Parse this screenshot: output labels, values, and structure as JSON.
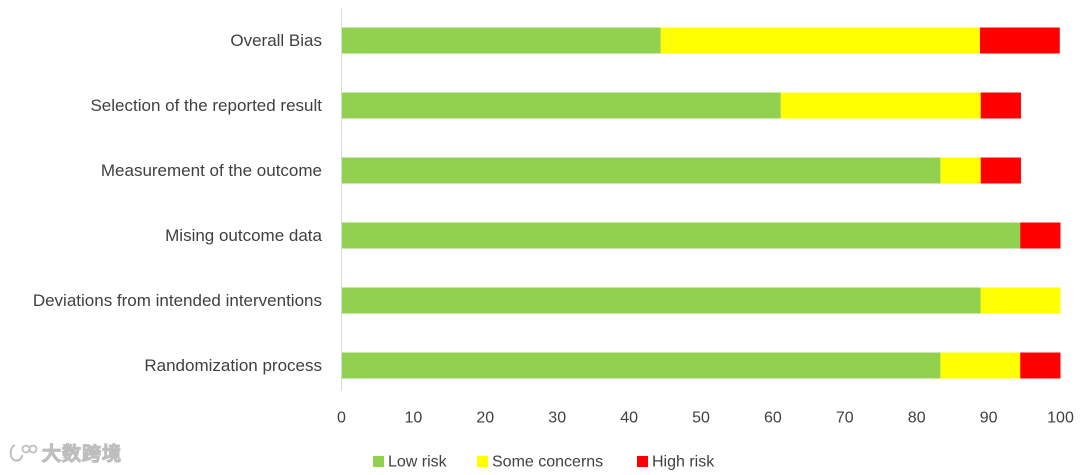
{
  "chart_data": {
    "type": "bar",
    "orientation": "horizontal",
    "stacked": true,
    "categories": [
      "Overall Bias",
      "Selection of the reported result",
      "Measurement of the outcome",
      "Mising outcome data",
      "Deviations from intended interventions",
      "Randomization process"
    ],
    "series": [
      {
        "name": "Low risk",
        "color": "#92d050",
        "values": [
          44.4,
          61.1,
          83.3,
          94.4,
          88.9,
          83.3
        ]
      },
      {
        "name": "Some concerns",
        "color": "#ffff00",
        "values": [
          44.4,
          27.8,
          5.6,
          0,
          11.1,
          11.1
        ]
      },
      {
        "name": "High risk",
        "color": "#ff0000",
        "values": [
          11.1,
          5.6,
          5.6,
          5.6,
          0,
          5.6
        ]
      }
    ],
    "xlim": [
      0,
      100
    ],
    "xticks": [
      "0",
      "10",
      "20",
      "30",
      "40",
      "50",
      "60",
      "70",
      "80",
      "90",
      "100"
    ],
    "title": "",
    "xlabel": "",
    "ylabel": "",
    "grid": false,
    "legend_position": "bottom"
  },
  "watermark": {
    "icon": "logo-icon",
    "text": "大数跨境"
  }
}
